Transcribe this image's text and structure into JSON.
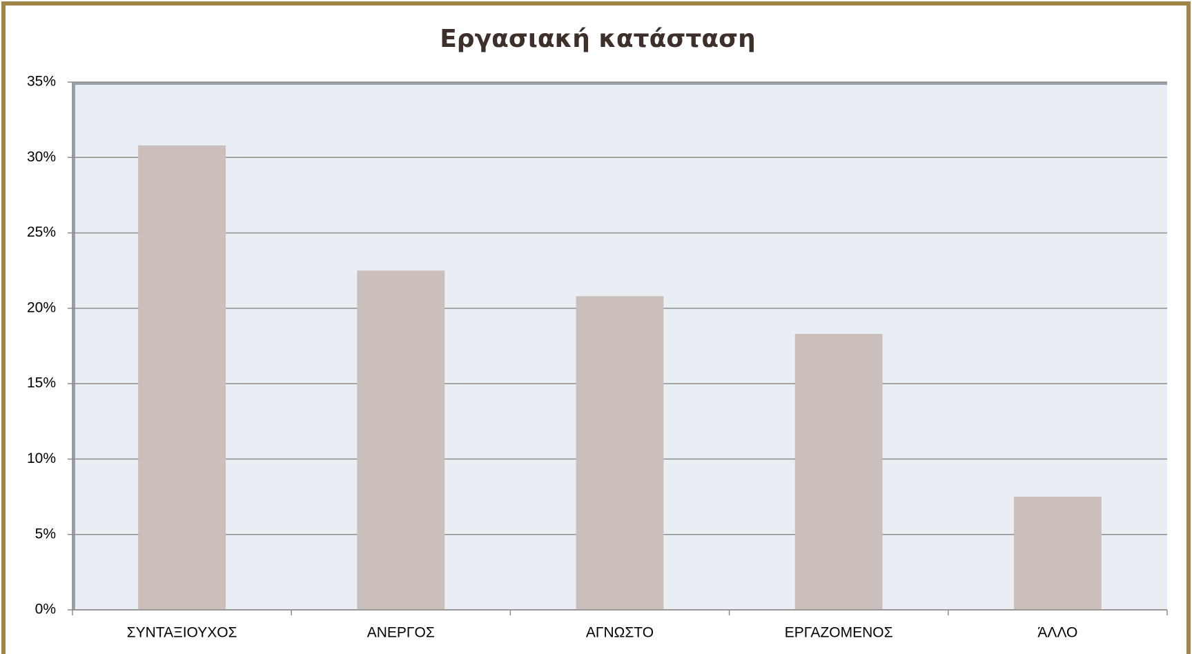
{
  "chart_data": {
    "type": "bar",
    "title": "Εργασιακή κατάσταση",
    "categories": [
      "ΣΥΝΤΑΞΙΟΥΧΟΣ",
      "ΑΝΕΡΓΟΣ",
      "ΑΓΝΩΣΤΟ",
      "ΕΡΓΑΖΟΜΕΝΟΣ",
      "ΆΛΛΟ"
    ],
    "values": [
      30.8,
      22.5,
      20.8,
      18.3,
      7.5
    ],
    "color": "#cbbfbb",
    "ylim": [
      0,
      35
    ],
    "yticks": [
      {
        "value": 0,
        "label": "0%"
      },
      {
        "value": 5,
        "label": "5%"
      },
      {
        "value": 10,
        "label": "10%"
      },
      {
        "value": 15,
        "label": "15%"
      },
      {
        "value": 20,
        "label": "20%"
      },
      {
        "value": 25,
        "label": "25%"
      },
      {
        "value": 30,
        "label": "30%"
      },
      {
        "value": 35,
        "label": "35%"
      }
    ],
    "grid": true
  }
}
